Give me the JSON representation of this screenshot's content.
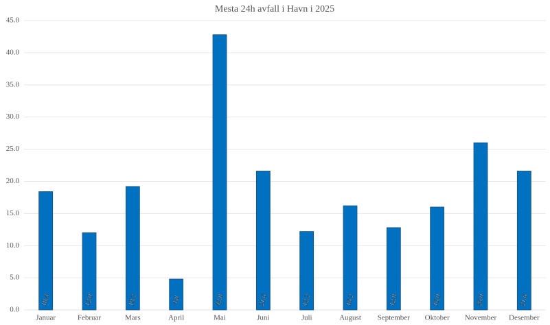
{
  "chart_data": {
    "type": "bar",
    "title": "Mesta 24h avfall i Havn i 2025",
    "categories": [
      "Januar",
      "Februar",
      "Mars",
      "April",
      "Mai",
      "Juni",
      "Juli",
      "August",
      "September",
      "Oktober",
      "November",
      "Desember"
    ],
    "values": [
      18.4,
      12.0,
      19.2,
      4.8,
      42.8,
      21.6,
      12.2,
      16.2,
      12.8,
      16.0,
      26.0,
      21.6
    ],
    "value_labels": [
      "18.4",
      "12.0",
      "19.2",
      "4.8",
      "42.8",
      "21.6",
      "12.2",
      "16.2",
      "12.8",
      "16.0",
      "26.0",
      "21.6"
    ],
    "color": "#0070c0",
    "ylim": [
      0,
      45
    ],
    "yticks": [
      {
        "value": 0,
        "label": "0.0"
      },
      {
        "value": 5,
        "label": "5.0"
      },
      {
        "value": 10,
        "label": "10.0"
      },
      {
        "value": 15,
        "label": "15.0"
      },
      {
        "value": 20,
        "label": "20.0"
      },
      {
        "value": 25,
        "label": "25.0"
      },
      {
        "value": 30,
        "label": "30.0"
      },
      {
        "value": 35,
        "label": "35.0"
      },
      {
        "value": 40,
        "label": "40.0"
      },
      {
        "value": 45,
        "label": "45.0"
      }
    ],
    "grid": true
  }
}
